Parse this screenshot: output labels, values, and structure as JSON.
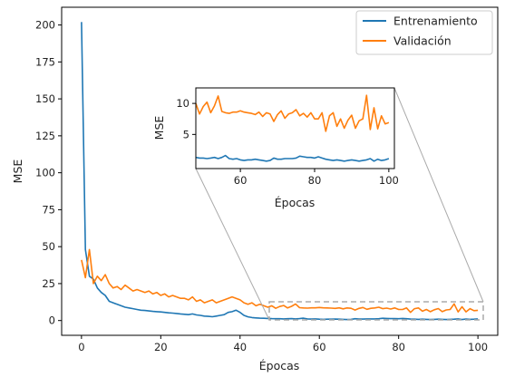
{
  "chart_data": {
    "type": "line",
    "xlabel": "Épocas",
    "ylabel": "MSE",
    "xlim": [
      -5,
      105
    ],
    "ylim": [
      -10,
      212
    ],
    "xticks": [
      "0",
      "20",
      "40",
      "60",
      "80",
      "100"
    ],
    "yticks": [
      "0",
      "25",
      "50",
      "75",
      "100",
      "125",
      "150",
      "175",
      "200"
    ],
    "grid": false,
    "legend_position": "top-right",
    "colors": {
      "train": "#1f77b4",
      "val": "#ff7f0e",
      "zoom_box": "#aaaaaa"
    },
    "x": [
      0,
      1,
      2,
      3,
      4,
      5,
      6,
      7,
      8,
      9,
      10,
      11,
      12,
      13,
      14,
      15,
      16,
      17,
      18,
      19,
      20,
      21,
      22,
      23,
      24,
      25,
      26,
      27,
      28,
      29,
      30,
      31,
      32,
      33,
      34,
      35,
      36,
      37,
      38,
      39,
      40,
      41,
      42,
      43,
      44,
      45,
      46,
      47,
      48,
      49,
      50,
      51,
      52,
      53,
      54,
      55,
      56,
      57,
      58,
      59,
      60,
      61,
      62,
      63,
      64,
      65,
      66,
      67,
      68,
      69,
      70,
      71,
      72,
      73,
      74,
      75,
      76,
      77,
      78,
      79,
      80,
      81,
      82,
      83,
      84,
      85,
      86,
      87,
      88,
      89,
      90,
      91,
      92,
      93,
      94,
      95,
      96,
      97,
      98,
      99,
      100
    ],
    "series": [
      {
        "name": "Entrenamiento",
        "values": [
          202,
          48,
          30,
          28,
          22,
          19,
          17,
          13,
          12,
          11,
          10,
          9,
          8.5,
          8,
          7.5,
          7,
          6.8,
          6.5,
          6.2,
          6,
          5.8,
          5.5,
          5.2,
          5,
          4.8,
          4.5,
          4.2,
          4,
          4.5,
          3.8,
          3.5,
          3,
          2.8,
          2.6,
          3,
          3.5,
          4,
          5.5,
          6,
          7,
          5.5,
          3.5,
          2.5,
          2,
          1.8,
          1.6,
          1.5,
          1.4,
          1.3,
          1.2,
          1.2,
          1.1,
          1.2,
          1.3,
          1.1,
          1.3,
          1.6,
          1.1,
          1,
          1.1,
          0.9,
          0.8,
          0.9,
          0.9,
          1,
          0.9,
          0.8,
          0.7,
          0.8,
          1.2,
          1,
          1,
          1.1,
          1.1,
          1.1,
          1.2,
          1.5,
          1.4,
          1.3,
          1.3,
          1.2,
          1.4,
          1.2,
          1,
          0.9,
          0.8,
          0.9,
          0.8,
          0.7,
          0.8,
          0.9,
          0.8,
          0.7,
          0.8,
          0.9,
          1.1,
          0.7,
          1,
          0.8,
          0.9,
          1.1
        ]
      },
      {
        "name": "Validación",
        "values": [
          41,
          29,
          48,
          25,
          30,
          27,
          31,
          25,
          22,
          23,
          21,
          24,
          22,
          20,
          21,
          20,
          19,
          20,
          18,
          19,
          17,
          18,
          16,
          17,
          16,
          15,
          15,
          14,
          16,
          13,
          14,
          12,
          13,
          14,
          12,
          13,
          14,
          15,
          16,
          15,
          14,
          12,
          11,
          12,
          10,
          11,
          10,
          9,
          10,
          8.3,
          9.5,
          10.2,
          8.5,
          9.6,
          11.2,
          8.7,
          8.5,
          8.4,
          8.6,
          8.6,
          8.8,
          8.6,
          8.5,
          8.4,
          8.2,
          8.6,
          7.9,
          8.5,
          8.3,
          7.1,
          8.2,
          8.8,
          7.6,
          8.3,
          8.5,
          9,
          8,
          8.4,
          7.8,
          8.5,
          7.5,
          7.5,
          8.5,
          5.5,
          8,
          8.5,
          6.3,
          7.5,
          6,
          7.3,
          8.1,
          6,
          7.2,
          7.5,
          11.3,
          5.8,
          9.3,
          5.9,
          8,
          6.7,
          6.9
        ]
      }
    ],
    "inset": {
      "xlabel": "Épocas",
      "ylabel": "MSE",
      "xlim": [
        48,
        101.5
      ],
      "ylim": [
        -0.5,
        12.5
      ],
      "xticks": [
        "60",
        "80",
        "100"
      ],
      "yticks": [
        "5",
        "10"
      ]
    }
  }
}
